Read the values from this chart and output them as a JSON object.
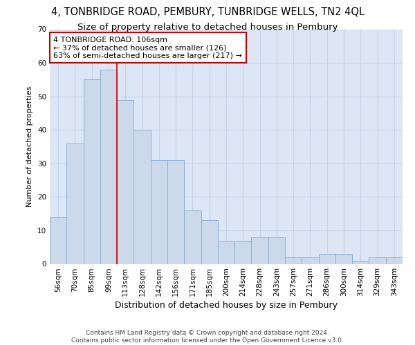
{
  "title": "4, TONBRIDGE ROAD, PEMBURY, TUNBRIDGE WELLS, TN2 4QL",
  "subtitle": "Size of property relative to detached houses in Pembury",
  "xlabel": "Distribution of detached houses by size in Pembury",
  "ylabel": "Number of detached properties",
  "categories": [
    "56sqm",
    "70sqm",
    "85sqm",
    "99sqm",
    "113sqm",
    "128sqm",
    "142sqm",
    "156sqm",
    "171sqm",
    "185sqm",
    "200sqm",
    "214sqm",
    "228sqm",
    "243sqm",
    "257sqm",
    "271sqm",
    "286sqm",
    "300sqm",
    "314sqm",
    "329sqm",
    "343sqm"
  ],
  "values": [
    14,
    36,
    55,
    58,
    49,
    40,
    31,
    31,
    16,
    13,
    7,
    7,
    8,
    8,
    2,
    2,
    3,
    3,
    1,
    2,
    2
  ],
  "bar_color": "#ccd9eb",
  "bar_edge_color": "#8ab0d4",
  "annotation_text": "4 TONBRIDGE ROAD: 106sqm\n← 37% of detached houses are smaller (126)\n63% of semi-detached houses are larger (217) →",
  "annotation_box_color": "#ffffff",
  "annotation_box_edge": "#cc0000",
  "vline_color": "#cc0000",
  "ylim": [
    0,
    70
  ],
  "yticks": [
    0,
    10,
    20,
    30,
    40,
    50,
    60,
    70
  ],
  "grid_color": "#c5d3e8",
  "background_color": "#dce6f5",
  "footer": "Contains HM Land Registry data © Crown copyright and database right 2024.\nContains public sector information licensed under the Open Government Licence v3.0.",
  "title_fontsize": 10.5,
  "subtitle_fontsize": 9.5,
  "xlabel_fontsize": 9,
  "ylabel_fontsize": 8,
  "tick_fontsize": 7.5,
  "footer_fontsize": 6.5,
  "vline_index": 3.5
}
